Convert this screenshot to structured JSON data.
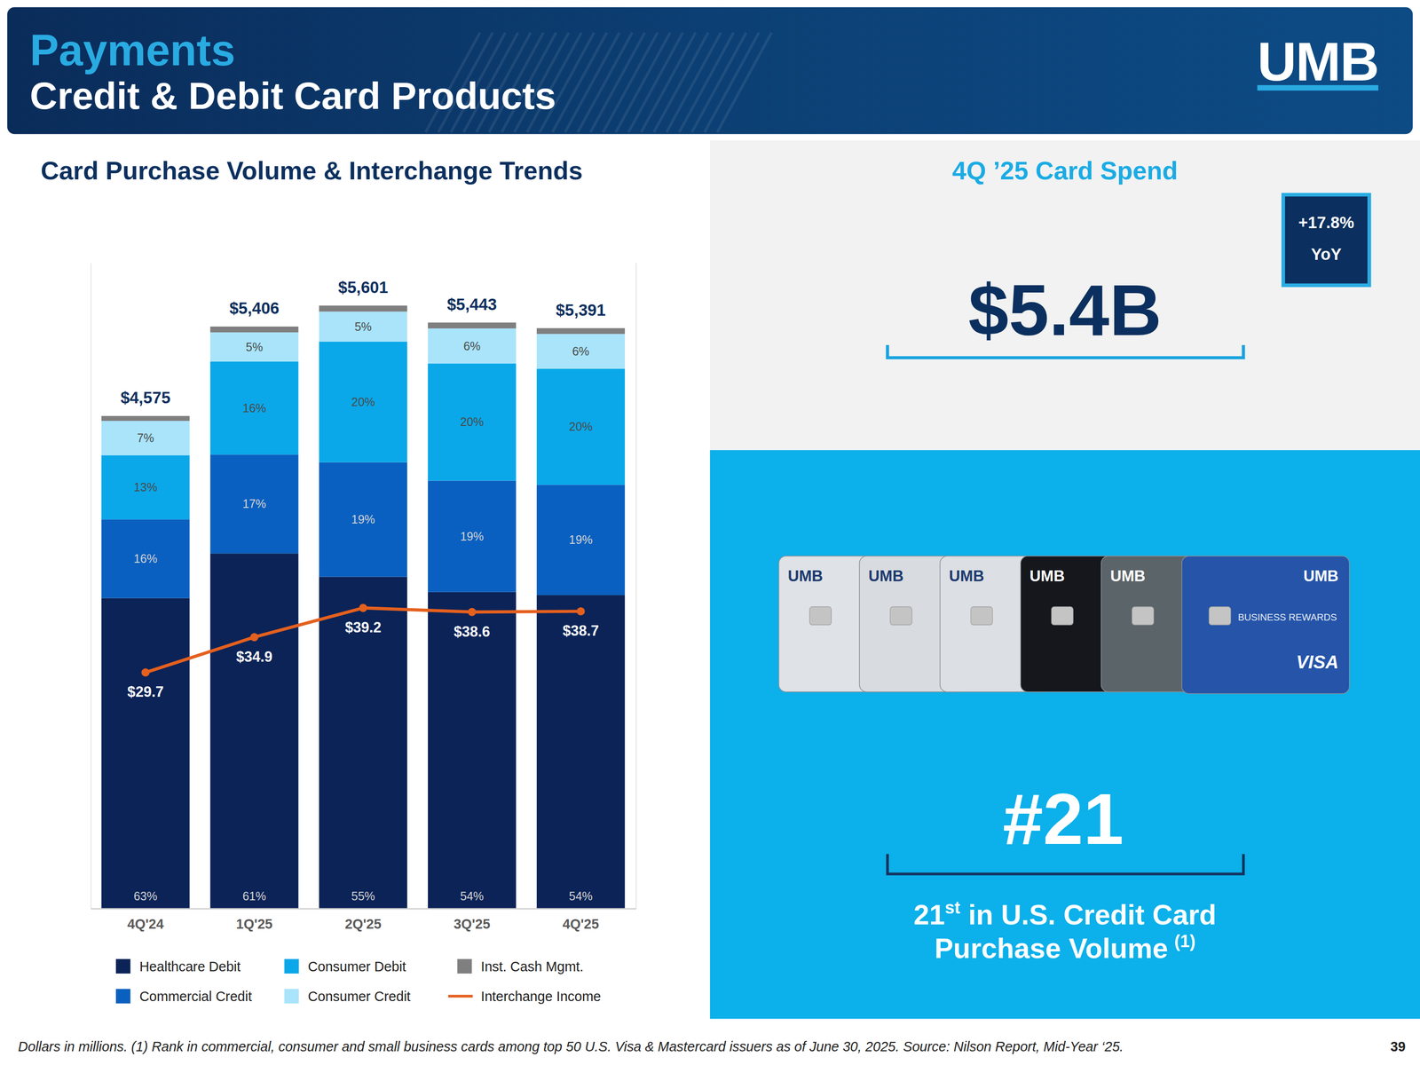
{
  "header": {
    "title": "Payments",
    "subtitle": "Credit & Debit Card Products",
    "logo": "UMB"
  },
  "chart_data": {
    "type": "bar",
    "stacked": true,
    "title": "Card Purchase Volume & Interchange Trends",
    "categories": [
      "4Q'24",
      "1Q'25",
      "2Q'25",
      "3Q'25",
      "4Q'25"
    ],
    "ylim": [
      0,
      6000
    ],
    "y2lim": [
      -5,
      90
    ],
    "tick_labels": "x",
    "grid": false,
    "legend": "bottom",
    "data_labels": true,
    "totals": {
      "values": [
        4575,
        5406,
        5601,
        5443,
        5391
      ],
      "value_labels": [
        "$4,575",
        "$5,406",
        "$5,601",
        "$5,443",
        "$5,391"
      ]
    },
    "series": [
      {
        "name": "Healthcare Debit",
        "color": "#0b2357",
        "values": [
          63,
          61,
          55,
          54,
          54
        ],
        "value_labels": [
          "63%",
          "61%",
          "55%",
          "54%",
          "54%"
        ]
      },
      {
        "name": "Commercial Credit",
        "color": "#0a60c0",
        "values": [
          16,
          17,
          19,
          19,
          19
        ],
        "value_labels": [
          "16%",
          "17%",
          "19%",
          "19%",
          "19%"
        ]
      },
      {
        "name": "Consumer Debit",
        "color": "#0aa8e9",
        "values": [
          13,
          16,
          20,
          20,
          20
        ],
        "value_labels": [
          "13%",
          "16%",
          "20%",
          "20%",
          "20%"
        ]
      },
      {
        "name": "Consumer Credit",
        "color": "#a9e4fb",
        "values": [
          7,
          5,
          5,
          6,
          6
        ],
        "value_labels": [
          "7%",
          "5%",
          "5%",
          "6%",
          "6%"
        ]
      },
      {
        "name": "Inst. Cash Mgmt.",
        "color": "#7f7f7f",
        "values": [
          1,
          1,
          1,
          1,
          1
        ],
        "data_labels": false
      },
      {
        "name": "Interchange Income",
        "type": "line",
        "axis": "y2",
        "color": "#e4601e",
        "marker": "circle",
        "values": [
          29.7,
          34.9,
          39.2,
          38.6,
          38.7
        ],
        "value_labels": [
          "$29.7",
          "$34.9",
          "$39.2",
          "$38.6",
          "$38.7"
        ]
      }
    ]
  },
  "spend_panel": {
    "title": "4Q ’25 Card Spend",
    "value": "$5.4B",
    "change": "+17.8%",
    "change_period": "YoY"
  },
  "rank_panel": {
    "cards": [
      {
        "brand": "UMB"
      },
      {
        "brand": "UMB"
      },
      {
        "brand": "UMB"
      },
      {
        "brand": "UMB"
      },
      {
        "brand": "UMB"
      },
      {
        "brand": "UMB",
        "label": "BUSINESS REWARDS",
        "network": "VISA"
      }
    ],
    "value": "#21",
    "ordinal": "21",
    "ordinal_suffix": "st",
    "caption_line1": "in U.S. Credit Card",
    "caption_line2": "Purchase Volume",
    "footnote_marker": "(1)"
  },
  "footer": {
    "note": "Dollars in millions. (1) Rank in commercial, consumer and small business cards among top 50 U.S. Visa & Mastercard issuers as of June 30, 2025. Source: Nilson Report, Mid-Year ‘25.",
    "page": "39"
  }
}
